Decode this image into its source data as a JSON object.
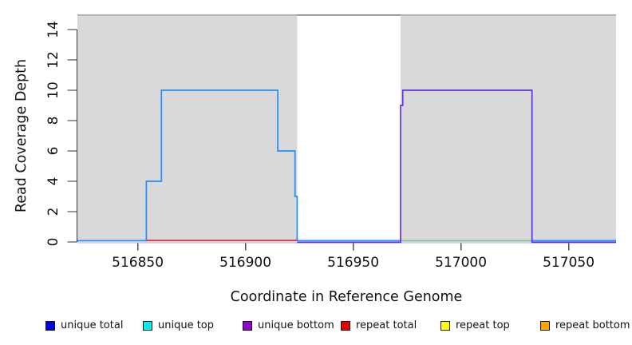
{
  "page": {
    "background": "#ffffff"
  },
  "chart_data": {
    "type": "line",
    "title": "",
    "xlabel": "Coordinate in Reference Genome",
    "ylabel": "Read Coverage Depth",
    "xlim": [
      516822,
      517072
    ],
    "ylim": [
      0,
      15
    ],
    "xticks": [
      516850,
      516900,
      516950,
      517000,
      517050
    ],
    "yticks": [
      0,
      2,
      4,
      6,
      8,
      10,
      12,
      14
    ],
    "grid": "off",
    "legend_position": "bottom",
    "background_regions": [
      {
        "name": "repeat-region-left",
        "x0": 516822,
        "x1": 516924,
        "color": "#d9d9d9"
      },
      {
        "name": "unique-region-gap",
        "x0": 516924,
        "x1": 516972,
        "color": "#ffffff"
      },
      {
        "name": "repeat-region-right",
        "x0": 516972,
        "x1": 517072,
        "color": "#d9d9d9"
      }
    ],
    "top_boundary": {
      "y": 15,
      "segments": [
        {
          "x0": 516822,
          "x1": 517072,
          "color": "#a8a8a8"
        },
        {
          "x0": 516924,
          "x1": 516972,
          "color": "#848484"
        }
      ]
    },
    "baseline_underline": {
      "x0": 516822,
      "x1": 517072,
      "y": 0,
      "color": "#c9bcf0"
    },
    "series": [
      {
        "name": "left-coverage-step-line",
        "color": "#1e90ff",
        "width": 1.7,
        "dy0": -1.7,
        "points": [
          [
            516822,
            0
          ],
          [
            516854,
            0
          ],
          [
            516854,
            4
          ],
          [
            516861,
            4
          ],
          [
            516861,
            10
          ],
          [
            516915,
            10
          ],
          [
            516915,
            6
          ],
          [
            516923,
            6
          ],
          [
            516923,
            3
          ],
          [
            516924,
            3
          ],
          [
            516924,
            0
          ],
          [
            517072,
            0
          ]
        ]
      },
      {
        "name": "red-baseline-segment",
        "color": "#e03030",
        "width": 1.7,
        "dy0": -2.0,
        "points": [
          [
            516854,
            0
          ],
          [
            516924,
            0
          ]
        ]
      },
      {
        "name": "green-baseline-segment",
        "color": "#82c882",
        "width": 1.7,
        "dy0": -1.7,
        "points": [
          [
            516972,
            0
          ],
          [
            517033,
            0
          ]
        ]
      },
      {
        "name": "right-coverage-step-line",
        "color": "#6130e8",
        "width": 1.7,
        "dy0": 0.4,
        "points": [
          [
            516924,
            0
          ],
          [
            516972,
            0
          ],
          [
            516972,
            9
          ],
          [
            516973,
            9
          ],
          [
            516973,
            10
          ],
          [
            517033,
            10
          ],
          [
            517033,
            0
          ],
          [
            517072,
            0
          ]
        ]
      }
    ]
  },
  "legend": {
    "items": [
      {
        "label": "unique total",
        "color": "#0000ee"
      },
      {
        "label": "unique top",
        "color": "#00eeee"
      },
      {
        "label": "unique bottom",
        "color": "#9400d3"
      },
      {
        "label": "repeat total",
        "color": "#e60000"
      },
      {
        "label": "repeat top",
        "color": "#ffff00"
      },
      {
        "label": "repeat bottom",
        "color": "#ffa500"
      }
    ]
  }
}
